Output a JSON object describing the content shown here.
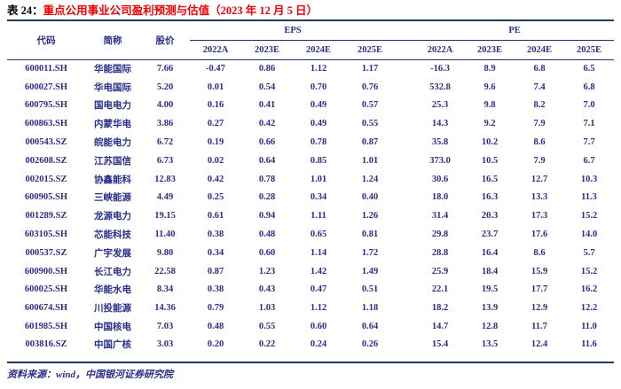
{
  "title": {
    "prefix": "表 24：",
    "text": "重点公用事业公司盈利预测与估值（2023 年 12 月 5 日）"
  },
  "table": {
    "headers": {
      "code": "代码",
      "name": "简称",
      "price": "股价",
      "eps_group": "EPS",
      "pe_group": "PE"
    },
    "eps_year_headers": [
      "2022A",
      "2023E",
      "2024E",
      "2025E"
    ],
    "pe_year_headers": [
      "2022A",
      "2023E",
      "2024E",
      "2025E"
    ],
    "rows": [
      {
        "code": "600011.SH",
        "name": "华能国际",
        "price": "7.66",
        "eps": [
          "-0.47",
          "0.86",
          "1.12",
          "1.17"
        ],
        "pe": [
          "-16.3",
          "8.9",
          "6.8",
          "6.5"
        ]
      },
      {
        "code": "600027.SH",
        "name": "华电国际",
        "price": "5.20",
        "eps": [
          "0.01",
          "0.54",
          "0.70",
          "0.76"
        ],
        "pe": [
          "532.8",
          "9.6",
          "7.4",
          "6.8"
        ]
      },
      {
        "code": "600795.SH",
        "name": "国电电力",
        "price": "4.00",
        "eps": [
          "0.16",
          "0.41",
          "0.49",
          "0.57"
        ],
        "pe": [
          "25.3",
          "9.8",
          "8.2",
          "7.0"
        ]
      },
      {
        "code": "600863.SH",
        "name": "内蒙华电",
        "price": "3.86",
        "eps": [
          "0.27",
          "0.42",
          "0.49",
          "0.55"
        ],
        "pe": [
          "14.3",
          "9.2",
          "7.9",
          "7.1"
        ]
      },
      {
        "code": "000543.SZ",
        "name": "皖能电力",
        "price": "6.72",
        "eps": [
          "0.19",
          "0.66",
          "0.78",
          "0.87"
        ],
        "pe": [
          "35.8",
          "10.2",
          "8.6",
          "7.7"
        ]
      },
      {
        "code": "002608.SZ",
        "name": "江苏国信",
        "price": "6.73",
        "eps": [
          "0.02",
          "0.64",
          "0.85",
          "1.01"
        ],
        "pe": [
          "373.0",
          "10.5",
          "7.9",
          "6.7"
        ]
      },
      {
        "code": "002015.SZ",
        "name": "协鑫能科",
        "price": "12.83",
        "eps": [
          "0.42",
          "0.78",
          "1.01",
          "1.24"
        ],
        "pe": [
          "30.6",
          "16.5",
          "12.7",
          "10.3"
        ]
      },
      {
        "code": "600905.SH",
        "name": "三峡能源",
        "price": "4.49",
        "eps": [
          "0.25",
          "0.28",
          "0.34",
          "0.40"
        ],
        "pe": [
          "18.0",
          "16.3",
          "13.3",
          "11.3"
        ]
      },
      {
        "code": "001289.SZ",
        "name": "龙源电力",
        "price": "19.15",
        "eps": [
          "0.61",
          "0.94",
          "1.11",
          "1.26"
        ],
        "pe": [
          "31.4",
          "20.3",
          "17.3",
          "15.2"
        ]
      },
      {
        "code": "603105.SH",
        "name": "芯能科技",
        "price": "11.40",
        "eps": [
          "0.38",
          "0.48",
          "0.65",
          "0.81"
        ],
        "pe": [
          "29.8",
          "23.7",
          "17.6",
          "14.0"
        ]
      },
      {
        "code": "000537.SZ",
        "name": "广宇发展",
        "price": "9.80",
        "eps": [
          "0.34",
          "0.60",
          "1.14",
          "1.72"
        ],
        "pe": [
          "28.8",
          "16.4",
          "8.6",
          "5.7"
        ]
      },
      {
        "code": "600900.SH",
        "name": "长江电力",
        "price": "22.58",
        "eps": [
          "0.87",
          "1.23",
          "1.42",
          "1.49"
        ],
        "pe": [
          "25.9",
          "18.4",
          "15.9",
          "15.2"
        ]
      },
      {
        "code": "600025.SH",
        "name": "华能水电",
        "price": "8.34",
        "eps": [
          "0.38",
          "0.43",
          "0.47",
          "0.51"
        ],
        "pe": [
          "22.1",
          "19.5",
          "17.7",
          "16.2"
        ]
      },
      {
        "code": "600674.SH",
        "name": "川投能源",
        "price": "14.36",
        "eps": [
          "0.79",
          "1.03",
          "1.12",
          "1.18"
        ],
        "pe": [
          "18.2",
          "13.9",
          "12.9",
          "12.2"
        ]
      },
      {
        "code": "601985.SH",
        "name": "中国核电",
        "price": "7.03",
        "eps": [
          "0.48",
          "0.55",
          "0.60",
          "0.64"
        ],
        "pe": [
          "14.7",
          "12.8",
          "11.7",
          "11.0"
        ]
      },
      {
        "code": "003816.SZ",
        "name": "中国广核",
        "price": "3.03",
        "eps": [
          "0.20",
          "0.22",
          "0.24",
          "0.26"
        ],
        "pe": [
          "15.4",
          "13.5",
          "12.4",
          "11.6"
        ]
      }
    ]
  },
  "footer": {
    "text": "资料来源：wind，中国银河证券研究院"
  },
  "colors": {
    "rule_navy": "#1F3864",
    "data_blue": "#2B2E8C",
    "title_red": "#EE0000",
    "title_black": "#000000"
  }
}
